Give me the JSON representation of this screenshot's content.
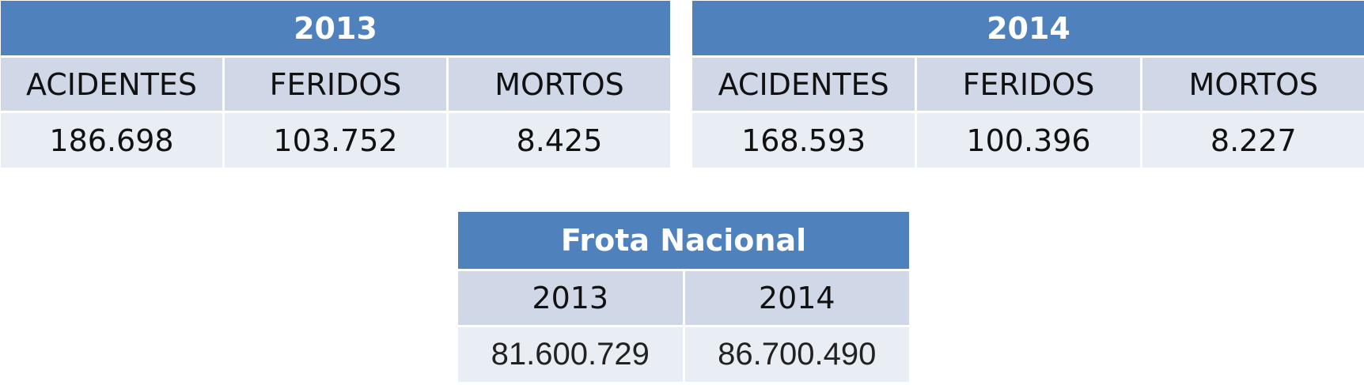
{
  "tables": {
    "y2013": {
      "title": "2013",
      "headers": [
        "ACIDENTES",
        "FERIDOS",
        "MORTOS"
      ],
      "values": [
        "186.698",
        "103.752",
        "8.425"
      ]
    },
    "y2014": {
      "title": "2014",
      "headers": [
        "ACIDENTES",
        "FERIDOS",
        "MORTOS"
      ],
      "values": [
        "168.593",
        "100.396",
        "8.227"
      ]
    },
    "frota": {
      "title": "Frota Nacional",
      "headers": [
        "2013",
        "2014"
      ],
      "values": [
        "81.600.729",
        "86.700.490"
      ]
    }
  },
  "colors": {
    "title_bg": "#4f81bd",
    "header_bg": "#d0d8e8",
    "value_bg": "#e9edf4"
  }
}
